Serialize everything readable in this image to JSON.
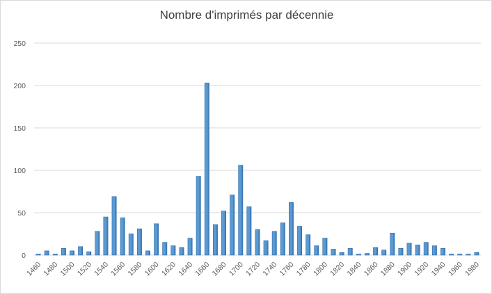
{
  "chart_data": {
    "type": "bar",
    "title": "Nombre d'imprimés par décennie",
    "xlabel": "",
    "ylabel": "",
    "ylim": [
      0,
      250
    ],
    "yticks": [
      0,
      50,
      100,
      150,
      200,
      250
    ],
    "ytick_labels": [
      "0",
      "50",
      "100",
      "150",
      "200",
      "250"
    ],
    "grid": true,
    "legend": "none",
    "bar_color": "#5b9bd5",
    "bar_edge_color": "#2e6aa6",
    "gridline_color": "#d9d9d9",
    "categories": [
      "1460",
      "1470",
      "1480",
      "1490",
      "1500",
      "1510",
      "1520",
      "1530",
      "1540",
      "1550",
      "1560",
      "1570",
      "1580",
      "1590",
      "1600",
      "1610",
      "1620",
      "1630",
      "1640",
      "1650",
      "1660",
      "1670",
      "1680",
      "1690",
      "1700",
      "1710",
      "1720",
      "1730",
      "1740",
      "1750",
      "1760",
      "1770",
      "1780",
      "1790",
      "1800",
      "1810",
      "1820",
      "1830",
      "1840",
      "1850",
      "1860",
      "1870",
      "1880",
      "1890",
      "1900",
      "1910",
      "1920",
      "1930",
      "1940",
      "1950",
      "1960",
      "1970",
      "1980"
    ],
    "x_tick_labels": [
      "1460",
      "1480",
      "1500",
      "1520",
      "1540",
      "1560",
      "1580",
      "1600",
      "1620",
      "1640",
      "1660",
      "1680",
      "1700",
      "1720",
      "1740",
      "1760",
      "1780",
      "1800",
      "1820",
      "1840",
      "1860",
      "1880",
      "1900",
      "1920",
      "1940",
      "1960",
      "1980"
    ],
    "values": [
      1,
      5,
      1,
      8,
      5,
      10,
      4,
      28,
      45,
      69,
      44,
      25,
      31,
      5,
      37,
      15,
      11,
      9,
      20,
      93,
      203,
      36,
      52,
      71,
      106,
      57,
      30,
      17,
      28,
      38,
      62,
      34,
      24,
      11,
      20,
      7,
      3,
      8,
      0,
      2,
      9,
      6,
      26,
      8,
      14,
      12,
      15,
      11,
      8,
      0,
      0,
      0,
      3
    ]
  }
}
